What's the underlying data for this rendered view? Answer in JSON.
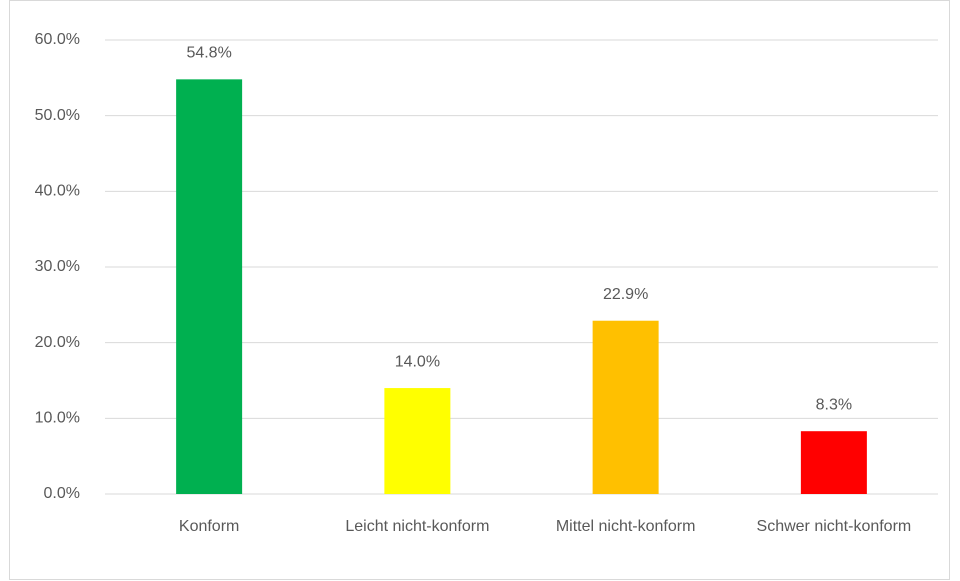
{
  "chart_data": {
    "type": "bar",
    "categories": [
      "Konform",
      "Leicht nicht-konform",
      "Mittel nicht-konform",
      "Schwer nicht-konform"
    ],
    "values": [
      54.8,
      14.0,
      22.9,
      8.3
    ],
    "value_labels": [
      "54.8%",
      "14.0%",
      "22.9%",
      "8.3%"
    ],
    "colors": [
      "#00b050",
      "#ffff00",
      "#ffc000",
      "#ff0000"
    ],
    "ylim": [
      0,
      60
    ],
    "yticks": [
      {
        "value": 0,
        "label": "0.0%"
      },
      {
        "value": 10,
        "label": "10.0%"
      },
      {
        "value": 20,
        "label": "20.0%"
      },
      {
        "value": 30,
        "label": "30.0%"
      },
      {
        "value": 40,
        "label": "40.0%"
      },
      {
        "value": 50,
        "label": "50.0%"
      },
      {
        "value": 60,
        "label": "60.0%"
      }
    ],
    "grid": true
  }
}
